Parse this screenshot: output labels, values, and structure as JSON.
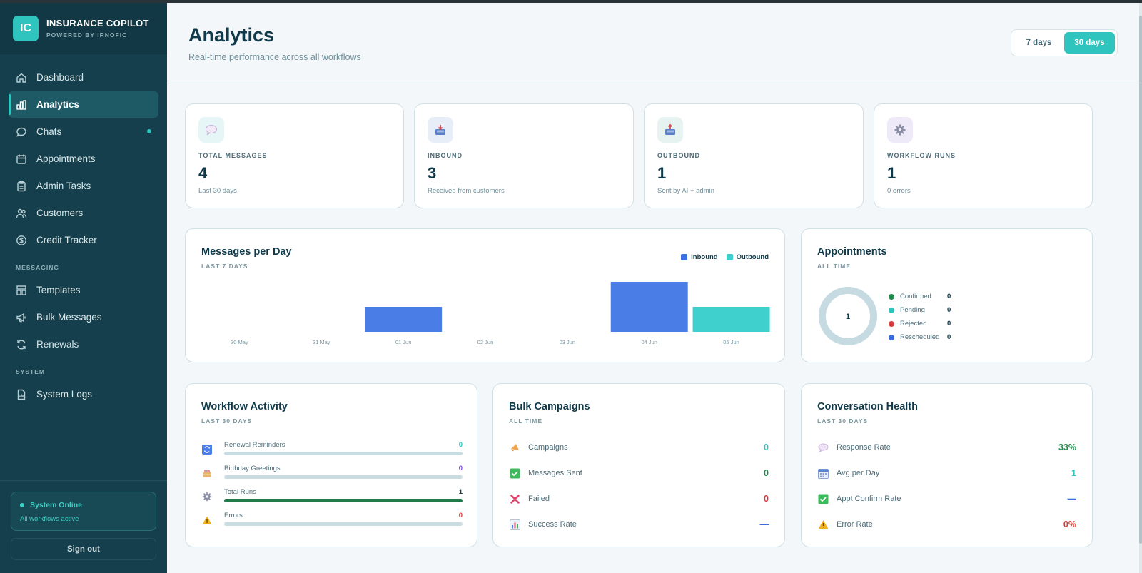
{
  "brand": {
    "initials": "IC",
    "title": "INSURANCE COPILOT",
    "subtitle": "POWERED BY IRNOFIC"
  },
  "sidebar": {
    "items": [
      {
        "label": "Dashboard",
        "icon": "home-icon"
      },
      {
        "label": "Analytics",
        "icon": "bar-chart-icon",
        "active": true
      },
      {
        "label": "Chats",
        "icon": "chat-icon",
        "dot": true
      },
      {
        "label": "Appointments",
        "icon": "calendar-icon"
      },
      {
        "label": "Admin Tasks",
        "icon": "clipboard-icon"
      },
      {
        "label": "Customers",
        "icon": "users-icon"
      },
      {
        "label": "Credit Tracker",
        "icon": "dollar-icon"
      }
    ],
    "messaging_section": "MESSAGING",
    "messaging_items": [
      {
        "label": "Templates",
        "icon": "template-icon"
      },
      {
        "label": "Bulk Messages",
        "icon": "megaphone-icon"
      },
      {
        "label": "Renewals",
        "icon": "refresh-icon"
      }
    ],
    "system_section": "SYSTEM",
    "system_items": [
      {
        "label": "System Logs",
        "icon": "log-icon"
      }
    ],
    "status": {
      "title": "System Online",
      "subtitle": "All workflows active"
    },
    "signout_label": "Sign out"
  },
  "header": {
    "title": "Analytics",
    "subtitle": "Real-time performance across all workflows",
    "range_options": [
      "7 days",
      "30 days"
    ],
    "range_selected": "30 days"
  },
  "stats": [
    {
      "label": "TOTAL MESSAGES",
      "value": "4",
      "sub": "Last 30 days",
      "icon": "speech-bubble-icon"
    },
    {
      "label": "INBOUND",
      "value": "3",
      "sub": "Received from customers",
      "icon": "inbox-icon"
    },
    {
      "label": "OUTBOUND",
      "value": "1",
      "sub": "Sent by AI + admin",
      "icon": "outbox-icon"
    },
    {
      "label": "WORKFLOW RUNS",
      "value": "1",
      "sub": "0 errors",
      "icon": "gear-icon"
    }
  ],
  "messages_chart": {
    "title": "Messages per Day",
    "subtitle": "LAST 7 DAYS",
    "chart_data": {
      "type": "bar",
      "categories": [
        "30 May",
        "31 May",
        "01 Jun",
        "02 Jun",
        "03 Jun",
        "04 Jun",
        "05 Jun"
      ],
      "series": [
        {
          "name": "Inbound",
          "color": "#4a7ee6",
          "values": [
            0,
            0,
            1,
            0,
            0,
            2,
            0
          ]
        },
        {
          "name": "Outbound",
          "color": "#3fcfcc",
          "values": [
            0,
            0,
            0,
            0,
            0,
            0,
            1
          ]
        }
      ],
      "ylim": [
        0,
        2
      ],
      "legend": "top-right",
      "grid": false
    }
  },
  "appointments": {
    "title": "Appointments",
    "subtitle": "ALL TIME",
    "total": "1",
    "items": [
      {
        "label": "Confirmed",
        "value": "0",
        "color": "#1f8a4c"
      },
      {
        "label": "Pending",
        "value": "0",
        "color": "#2fc4bd"
      },
      {
        "label": "Rejected",
        "value": "0",
        "color": "#d93838"
      },
      {
        "label": "Rescheduled",
        "value": "0",
        "color": "#3b6fe0"
      }
    ]
  },
  "workflow": {
    "title": "Workflow Activity",
    "subtitle": "LAST 30 DAYS",
    "rows": [
      {
        "label": "Renewal Reminders",
        "value": "0",
        "fill": 0,
        "icon": "refresh-icon",
        "color": "#2fc4bd"
      },
      {
        "label": "Birthday Greetings",
        "value": "0",
        "fill": 0,
        "icon": "cake-icon",
        "color": "#7a4fd1"
      },
      {
        "label": "Total Runs",
        "value": "1",
        "fill": 1,
        "icon": "gear-icon",
        "color": "#103a4a"
      },
      {
        "label": "Errors",
        "value": "0",
        "fill": 0,
        "icon": "warning-icon",
        "color": "#d93838"
      }
    ]
  },
  "bulk": {
    "title": "Bulk Campaigns",
    "subtitle": "ALL TIME",
    "rows": [
      {
        "label": "Campaigns",
        "value": "0",
        "icon": "megaphone-icon",
        "color": "#2fc4bd"
      },
      {
        "label": "Messages Sent",
        "value": "0",
        "icon": "check-icon",
        "color": "#1f8a4c"
      },
      {
        "label": "Failed",
        "value": "0",
        "icon": "cross-icon",
        "color": "#d93838"
      },
      {
        "label": "Success Rate",
        "value": "—",
        "icon": "chart-icon",
        "color": "#3b6fe0"
      }
    ]
  },
  "health": {
    "title": "Conversation Health",
    "subtitle": "LAST 30 DAYS",
    "rows": [
      {
        "label": "Response Rate",
        "value": "33%",
        "icon": "speech-bubble-icon",
        "color": "#1f8a4c"
      },
      {
        "label": "Avg per Day",
        "value": "1",
        "icon": "calendar-icon",
        "color": "#2fc4bd"
      },
      {
        "label": "Appt Confirm Rate",
        "value": "—",
        "icon": "check-icon",
        "color": "#3b6fe0"
      },
      {
        "label": "Error Rate",
        "value": "0%",
        "icon": "warning-icon",
        "color": "#d93838"
      }
    ]
  }
}
